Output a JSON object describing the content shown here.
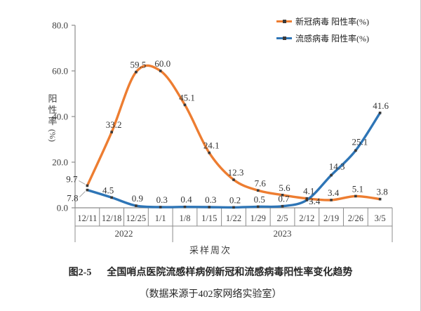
{
  "chart_data": {
    "type": "line",
    "title": "全国哨点医院流感样病例新冠和流感病毒阳性率变化趋势",
    "figure_label": "图2-5",
    "source_note": "（数据来源于402家网络实验室）",
    "xlabel": "采样周次",
    "ylabel": "阳性率",
    "ylabel_unit": "(%)",
    "categories": [
      "12/11",
      "12/18",
      "12/25",
      "1/1",
      "1/8",
      "1/15",
      "1/22",
      "1/29",
      "2/5",
      "2/12",
      "2/19",
      "2/26",
      "3/5"
    ],
    "year_groups": [
      {
        "label": "2022",
        "span": 4
      },
      {
        "label": "2023",
        "span": 9
      }
    ],
    "y_ticks": [
      "0.0",
      "20.0",
      "40.0",
      "60.0",
      "80.0"
    ],
    "ylim": [
      0,
      80
    ],
    "grid": false,
    "line_smoothing": true,
    "legend_position": "top-right",
    "series": [
      {
        "name": "新冠病毒 阳性率(%)",
        "color": "#ED7D31",
        "values": [
          9.7,
          33.2,
          59.5,
          60.0,
          45.1,
          24.1,
          12.3,
          7.6,
          5.6,
          4.1,
          3.4,
          5.1,
          3.8
        ]
      },
      {
        "name": "流感病毒 阳性率(%)",
        "color": "#2E75B6",
        "values": [
          7.8,
          4.5,
          0.9,
          0.3,
          0.4,
          0.3,
          0.2,
          0.5,
          0.7,
          3.4,
          14.3,
          25.1,
          41.6
        ]
      }
    ]
  },
  "caption": {
    "figure_label": "图2-5",
    "title": "全国哨点医院流感样病例新冠和流感病毒阳性率变化趋势",
    "source": "（数据来源于402家网络实验室）"
  },
  "colors": {
    "covid_line": "#ED7D31",
    "flu_line": "#2E75B6",
    "marker": "#3A3A3A",
    "axis": "#8C8C8C",
    "tick_text": "#3F3F3F",
    "data_label_text": "#333333",
    "caption_text": "#262626",
    "leader_line": "#999999"
  }
}
